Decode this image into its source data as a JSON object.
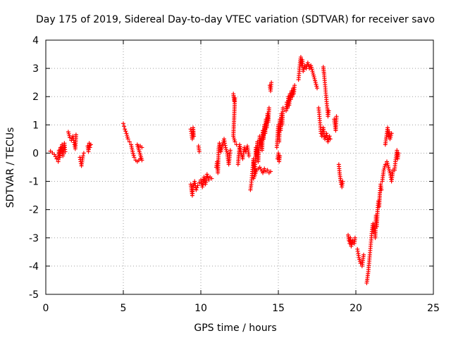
{
  "chart_data": {
    "type": "scatter",
    "title": "Day 175 of 2019, Sidereal Day-to-day VTEC variation (SDTVAR) for receiver savo",
    "xlabel": "GPS time / hours",
    "ylabel": "SDTVAR / TECUs",
    "xlim": [
      0,
      25
    ],
    "ylim": [
      -5,
      4
    ],
    "xticks": [
      "0",
      "5",
      "10",
      "15",
      "20",
      "25"
    ],
    "yticks": [
      "-5",
      "-4",
      "-3",
      "-2",
      "-1",
      "0",
      "1",
      "2",
      "3",
      "4"
    ],
    "grid": true,
    "marker": "+",
    "color": "#ff0000",
    "segments": [
      [
        [
          0.3,
          0.07
        ],
        [
          0.55,
          -0.05
        ],
        [
          0.7,
          -0.2
        ],
        [
          0.8,
          -0.3
        ],
        [
          0.85,
          0.1
        ],
        [
          0.9,
          -0.15
        ],
        [
          0.95,
          0.2
        ],
        [
          1.0,
          0.05
        ],
        [
          1.05,
          0.3
        ],
        [
          1.1,
          -0.1
        ],
        [
          1.15,
          0.1
        ],
        [
          1.2,
          0.35
        ],
        [
          1.25,
          0.05
        ]
      ],
      [
        [
          1.45,
          0.75
        ],
        [
          1.55,
          0.55
        ],
        [
          1.65,
          0.45
        ],
        [
          1.75,
          0.6
        ],
        [
          1.85,
          0.3
        ],
        [
          1.9,
          0.15
        ],
        [
          1.95,
          0.65
        ]
      ],
      [
        [
          2.2,
          -0.15
        ],
        [
          2.25,
          -0.3
        ],
        [
          2.3,
          -0.45
        ],
        [
          2.4,
          -0.1
        ],
        [
          2.45,
          0.0
        ]
      ],
      [
        [
          2.7,
          0.25
        ],
        [
          2.75,
          0.05
        ],
        [
          2.8,
          0.35
        ],
        [
          2.85,
          0.2
        ],
        [
          2.9,
          0.3
        ]
      ],
      [
        [
          5.0,
          1.05
        ],
        [
          5.05,
          0.95
        ],
        [
          5.1,
          0.85
        ],
        [
          5.2,
          0.7
        ],
        [
          5.3,
          0.5
        ],
        [
          5.4,
          0.4
        ],
        [
          5.5,
          0.3
        ],
        [
          5.6,
          0.05
        ],
        [
          5.7,
          -0.15
        ],
        [
          5.8,
          -0.25
        ],
        [
          5.9,
          -0.3
        ],
        [
          6.0,
          -0.25
        ],
        [
          6.1,
          -0.2
        ],
        [
          6.2,
          -0.25
        ],
        [
          5.9,
          0.3
        ],
        [
          6.0,
          0.25
        ],
        [
          6.1,
          0.25
        ],
        [
          6.2,
          0.2
        ]
      ],
      [
        [
          9.35,
          0.85
        ],
        [
          9.4,
          0.7
        ],
        [
          9.45,
          0.5
        ],
        [
          9.5,
          0.9
        ],
        [
          9.55,
          0.6
        ]
      ],
      [
        [
          9.35,
          -1.1
        ],
        [
          9.4,
          -1.3
        ],
        [
          9.45,
          -1.5
        ],
        [
          9.5,
          -1.2
        ],
        [
          9.6,
          -1.0
        ],
        [
          9.7,
          -1.3
        ],
        [
          9.8,
          -1.15
        ],
        [
          9.9,
          -1.05
        ],
        [
          10.0,
          -0.95
        ],
        [
          10.1,
          -1.2
        ],
        [
          10.2,
          -0.85
        ],
        [
          10.3,
          -1.1
        ],
        [
          10.4,
          -0.75
        ],
        [
          10.5,
          -0.95
        ],
        [
          10.6,
          -0.85
        ],
        [
          10.7,
          -0.9
        ]
      ],
      [
        [
          9.85,
          0.25
        ],
        [
          9.9,
          0.05
        ]
      ],
      [
        [
          11.0,
          -0.5
        ],
        [
          11.05,
          -0.3
        ],
        [
          11.1,
          -0.7
        ],
        [
          11.15,
          0.15
        ],
        [
          11.2,
          0.35
        ],
        [
          11.3,
          0.05
        ],
        [
          11.4,
          0.3
        ],
        [
          11.5,
          0.5
        ],
        [
          11.6,
          0.2
        ],
        [
          11.7,
          0.0
        ],
        [
          11.8,
          -0.4
        ],
        [
          11.9,
          0.1
        ]
      ],
      [
        [
          12.1,
          2.1
        ],
        [
          12.15,
          1.85
        ],
        [
          12.2,
          1.95
        ],
        [
          12.1,
          0.6
        ],
        [
          12.2,
          0.4
        ],
        [
          12.3,
          0.3
        ]
      ],
      [
        [
          12.4,
          -0.4
        ],
        [
          12.5,
          0.3
        ],
        [
          12.6,
          0.0
        ],
        [
          12.7,
          -0.2
        ],
        [
          12.8,
          0.2
        ],
        [
          12.9,
          0.05
        ],
        [
          13.0,
          0.25
        ],
        [
          13.1,
          -0.1
        ]
      ],
      [
        [
          13.2,
          -1.3
        ],
        [
          13.25,
          -1.1
        ],
        [
          13.3,
          -0.8
        ],
        [
          13.35,
          -0.5
        ],
        [
          13.4,
          -0.2
        ],
        [
          13.45,
          -0.7
        ],
        [
          13.5,
          -0.4
        ],
        [
          13.55,
          0.2
        ],
        [
          13.6,
          -0.1
        ],
        [
          13.65,
          0.4
        ],
        [
          13.7,
          -0.3
        ],
        [
          13.75,
          0.2
        ],
        [
          13.8,
          0.6
        ],
        [
          13.85,
          0.3
        ],
        [
          13.9,
          0.5
        ],
        [
          13.95,
          0.1
        ],
        [
          14.0,
          0.8
        ],
        [
          14.05,
          0.5
        ],
        [
          14.1,
          1.0
        ],
        [
          14.15,
          0.7
        ],
        [
          14.2,
          1.2
        ],
        [
          14.25,
          0.9
        ],
        [
          14.3,
          1.4
        ],
        [
          14.35,
          1.1
        ],
        [
          14.4,
          1.6
        ]
      ],
      [
        [
          13.4,
          -0.9
        ],
        [
          13.6,
          -0.6
        ],
        [
          13.8,
          -0.5
        ],
        [
          14.0,
          -0.7
        ],
        [
          14.1,
          -0.55
        ],
        [
          14.2,
          -0.65
        ],
        [
          14.3,
          -0.6
        ],
        [
          14.4,
          -0.7
        ],
        [
          14.5,
          -0.65
        ]
      ],
      [
        [
          14.45,
          2.4
        ],
        [
          14.5,
          2.2
        ],
        [
          14.55,
          2.5
        ]
      ],
      [
        [
          14.9,
          0.2
        ],
        [
          14.95,
          0.6
        ],
        [
          15.0,
          1.0
        ],
        [
          15.05,
          0.4
        ],
        [
          15.1,
          1.2
        ],
        [
          15.15,
          0.8
        ],
        [
          15.2,
          1.4
        ],
        [
          15.25,
          1.0
        ],
        [
          15.3,
          1.6
        ]
      ],
      [
        [
          14.95,
          -0.2
        ],
        [
          15.0,
          0.0
        ],
        [
          15.05,
          -0.3
        ],
        [
          15.1,
          -0.1
        ]
      ],
      [
        [
          15.5,
          1.5
        ],
        [
          15.55,
          1.8
        ],
        [
          15.6,
          1.6
        ],
        [
          15.65,
          2.0
        ],
        [
          15.7,
          1.7
        ],
        [
          15.75,
          2.1
        ],
        [
          15.8,
          1.9
        ],
        [
          15.85,
          2.2
        ],
        [
          15.9,
          2.0
        ],
        [
          15.95,
          2.3
        ],
        [
          16.0,
          2.1
        ],
        [
          16.05,
          2.4
        ]
      ],
      [
        [
          16.3,
          2.6
        ],
        [
          16.35,
          2.9
        ],
        [
          16.4,
          3.2
        ],
        [
          16.45,
          3.4
        ],
        [
          16.5,
          3.1
        ],
        [
          16.55,
          3.3
        ],
        [
          16.6,
          2.9
        ],
        [
          16.7,
          3.1
        ],
        [
          16.8,
          3.0
        ],
        [
          16.9,
          3.2
        ],
        [
          17.0,
          3.0
        ],
        [
          17.1,
          3.1
        ],
        [
          17.2,
          2.9
        ],
        [
          17.3,
          2.7
        ],
        [
          17.4,
          2.5
        ],
        [
          17.5,
          2.3
        ]
      ],
      [
        [
          17.6,
          1.6
        ],
        [
          17.65,
          1.3
        ],
        [
          17.7,
          1.0
        ],
        [
          17.75,
          0.7
        ],
        [
          17.8,
          0.6
        ],
        [
          17.9,
          0.9
        ],
        [
          18.0,
          0.5
        ],
        [
          18.1,
          0.7
        ],
        [
          18.2,
          0.4
        ],
        [
          18.3,
          0.6
        ],
        [
          18.35,
          0.5
        ]
      ],
      [
        [
          17.9,
          3.05
        ],
        [
          17.95,
          2.8
        ],
        [
          18.0,
          2.5
        ],
        [
          18.05,
          2.2
        ],
        [
          18.1,
          1.9
        ],
        [
          18.15,
          1.6
        ],
        [
          18.2,
          1.3
        ],
        [
          18.25,
          1.5
        ]
      ],
      [
        [
          18.6,
          1.2
        ],
        [
          18.65,
          1.0
        ],
        [
          18.7,
          0.8
        ],
        [
          18.75,
          1.3
        ]
      ],
      [
        [
          18.9,
          -0.4
        ],
        [
          18.95,
          -0.7
        ],
        [
          19.0,
          -0.9
        ],
        [
          19.05,
          -1.1
        ],
        [
          19.1,
          -1.2
        ],
        [
          19.15,
          -1.0
        ]
      ],
      [
        [
          19.5,
          -2.9
        ],
        [
          19.55,
          -3.1
        ],
        [
          19.6,
          -3.2
        ],
        [
          19.65,
          -3.0
        ],
        [
          19.7,
          -3.3
        ],
        [
          19.8,
          -3.1
        ],
        [
          19.9,
          -3.2
        ],
        [
          19.95,
          -3.0
        ]
      ],
      [
        [
          20.1,
          -3.4
        ],
        [
          20.2,
          -3.7
        ],
        [
          20.3,
          -3.9
        ],
        [
          20.4,
          -4.0
        ],
        [
          20.45,
          -3.8
        ],
        [
          20.5,
          -3.6
        ]
      ],
      [
        [
          20.7,
          -4.6
        ],
        [
          20.75,
          -4.4
        ],
        [
          20.8,
          -4.2
        ],
        [
          20.85,
          -3.9
        ],
        [
          20.9,
          -3.6
        ],
        [
          20.95,
          -3.3
        ],
        [
          21.0,
          -3.0
        ],
        [
          21.05,
          -2.7
        ],
        [
          21.1,
          -2.5
        ],
        [
          21.15,
          -2.8
        ]
      ],
      [
        [
          21.2,
          -2.6
        ],
        [
          21.25,
          -3.0
        ],
        [
          21.3,
          -2.2
        ],
        [
          21.35,
          -2.6
        ],
        [
          21.4,
          -2.0
        ],
        [
          21.45,
          -1.7
        ],
        [
          21.5,
          -1.9
        ],
        [
          21.55,
          -1.4
        ],
        [
          21.6,
          -1.1
        ],
        [
          21.65,
          -1.3
        ]
      ],
      [
        [
          21.7,
          -1.0
        ],
        [
          21.8,
          -0.6
        ],
        [
          21.9,
          -0.4
        ],
        [
          22.0,
          -0.3
        ],
        [
          22.1,
          -0.5
        ],
        [
          22.2,
          -0.7
        ],
        [
          22.3,
          -1.0
        ],
        [
          22.4,
          -0.6
        ]
      ],
      [
        [
          21.9,
          0.3
        ],
        [
          22.0,
          0.7
        ],
        [
          22.05,
          0.9
        ],
        [
          22.1,
          0.6
        ],
        [
          22.15,
          0.75
        ],
        [
          22.2,
          0.5
        ],
        [
          22.3,
          0.7
        ]
      ],
      [
        [
          22.5,
          -0.6
        ],
        [
          22.55,
          -0.3
        ],
        [
          22.6,
          -0.1
        ],
        [
          22.65,
          0.1
        ],
        [
          22.7,
          -0.2
        ],
        [
          22.75,
          0.0
        ]
      ]
    ]
  }
}
